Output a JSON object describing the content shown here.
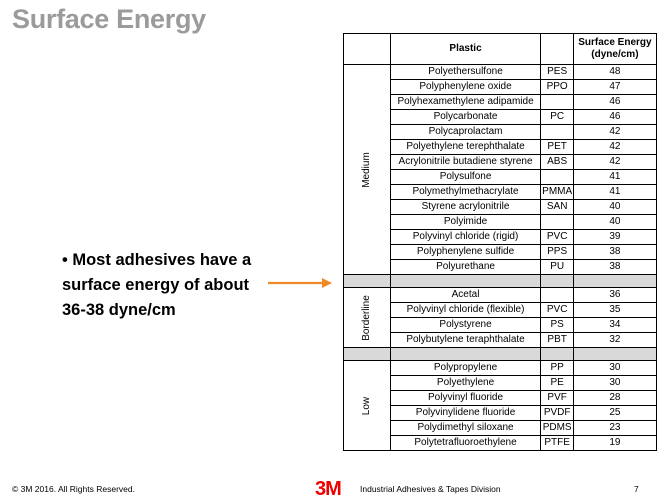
{
  "title": "Surface Energy",
  "bullet": "• Most adhesives have a surface energy of about 36-38 dyne/cm",
  "table": {
    "header_plastic": "Plastic",
    "header_energy": "Surface Energy (dyne/cm)",
    "groups": {
      "medium": "Medium",
      "borderline": "Borderline",
      "low": "Low"
    },
    "medium": [
      {
        "name": "Polyethersulfone",
        "abbr": "PES",
        "value": "48"
      },
      {
        "name": "Polyphenylene oxide",
        "abbr": "PPO",
        "value": "47"
      },
      {
        "name": "Polyhexamethylene adipamide",
        "abbr": "",
        "value": "46"
      },
      {
        "name": "Polycarbonate",
        "abbr": "PC",
        "value": "46"
      },
      {
        "name": "Polycaprolactam",
        "abbr": "",
        "value": "42"
      },
      {
        "name": "Polyethylene terephthalate",
        "abbr": "PET",
        "value": "42"
      },
      {
        "name": "Acrylonitrile butadiene styrene",
        "abbr": "ABS",
        "value": "42"
      },
      {
        "name": "Polysulfone",
        "abbr": "",
        "value": "41"
      },
      {
        "name": "Polymethylmethacrylate",
        "abbr": "PMMA",
        "value": "41"
      },
      {
        "name": "Styrene acrylonitrile",
        "abbr": "SAN",
        "value": "40"
      },
      {
        "name": "Polyimide",
        "abbr": "",
        "value": "40"
      },
      {
        "name": "Polyvinyl chloride (rigid)",
        "abbr": "PVC",
        "value": "39"
      },
      {
        "name": "Polyphenylene sulfide",
        "abbr": "PPS",
        "value": "38"
      },
      {
        "name": "Polyurethane",
        "abbr": "PU",
        "value": "38"
      }
    ],
    "borderline": [
      {
        "name": "Acetal",
        "abbr": "",
        "value": "36"
      },
      {
        "name": "Polyvinyl chloride (flexible)",
        "abbr": "PVC",
        "value": "35"
      },
      {
        "name": "Polystyrene",
        "abbr": "PS",
        "value": "34"
      },
      {
        "name": "Polybutylene teraphthalate",
        "abbr": "PBT",
        "value": "32"
      }
    ],
    "low": [
      {
        "name": "Polypropylene",
        "abbr": "PP",
        "value": "30"
      },
      {
        "name": "Polyethylene",
        "abbr": "PE",
        "value": "30"
      },
      {
        "name": "Polyvinyl fluoride",
        "abbr": "PVF",
        "value": "28"
      },
      {
        "name": "Polyvinylidene fluoride",
        "abbr": "PVDF",
        "value": "25"
      },
      {
        "name": "Polydimethyl siloxane",
        "abbr": "PDMS",
        "value": "23"
      },
      {
        "name": "Polytetrafluoroethylene",
        "abbr": "PTFE",
        "value": "19"
      }
    ]
  },
  "footer": {
    "copyright": "© 3M 2016. All Rights Reserved.",
    "logo": "3M",
    "division": "Industrial Adhesives & Tapes Division",
    "page": "7"
  },
  "colors": {
    "title": "#9b9b9b",
    "arrow": "#f08a24",
    "logo": "#e00000"
  }
}
